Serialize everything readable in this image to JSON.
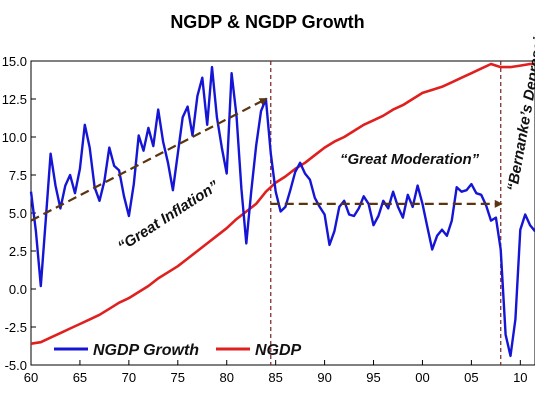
{
  "chart_data": {
    "type": "line",
    "title": "NGDP & NGDP Growth",
    "xlabel": "",
    "ylabel": "",
    "x_ticks": [
      "60",
      "65",
      "70",
      "75",
      "80",
      "85",
      "90",
      "95",
      "00",
      "05",
      "10"
    ],
    "y_ticks": [
      "15.0",
      "12.5",
      "10.0",
      "7.5",
      "5.0",
      "2.5",
      "0.0",
      "-2.5",
      "-5.0"
    ],
    "x_range": [
      1960,
      2011.5
    ],
    "ylim": [
      -5,
      15
    ],
    "grid": false,
    "legend_position": "bottom-left",
    "series": [
      {
        "name": "NGDP Growth",
        "color": "#1515d6",
        "x": [
          1960,
          1960.5,
          1961,
          1961.5,
          1962,
          1962.5,
          1963,
          1963.5,
          1964,
          1964.5,
          1965,
          1965.5,
          1966,
          1966.5,
          1967,
          1967.5,
          1968,
          1968.5,
          1969,
          1969.5,
          1970,
          1970.5,
          1971,
          1971.5,
          1972,
          1972.5,
          1973,
          1973.5,
          1974,
          1974.5,
          1975,
          1975.5,
          1976,
          1976.5,
          1977,
          1977.5,
          1978,
          1978.5,
          1979,
          1979.5,
          1980,
          1980.5,
          1981,
          1981.5,
          1982,
          1982.5,
          1983,
          1983.5,
          1984,
          1984.5,
          1985,
          1985.5,
          1986,
          1986.5,
          1987,
          1987.5,
          1988,
          1988.5,
          1989,
          1989.5,
          1990,
          1990.5,
          1991,
          1991.5,
          1992,
          1992.5,
          1993,
          1993.5,
          1994,
          1994.5,
          1995,
          1995.5,
          1996,
          1996.5,
          1997,
          1997.5,
          1998,
          1998.5,
          1999,
          1999.5,
          2000,
          2000.5,
          2001,
          2001.5,
          2002,
          2002.5,
          2003,
          2003.5,
          2004,
          2004.5,
          2005,
          2005.5,
          2006,
          2006.5,
          2007,
          2007.5,
          2008,
          2008.5,
          2009,
          2009.5,
          2010,
          2010.5,
          2011,
          2011.5
        ],
        "values": [
          6.4,
          3.8,
          0.2,
          4.5,
          8.9,
          6.8,
          5.3,
          6.8,
          7.5,
          6.3,
          7.9,
          10.8,
          9.3,
          6.7,
          5.8,
          7.1,
          9.3,
          8.1,
          7.8,
          6.1,
          4.8,
          6.9,
          10.1,
          9.1,
          10.6,
          9.4,
          11.8,
          9.7,
          8.3,
          6.5,
          8.9,
          11.3,
          12.0,
          10.1,
          12.7,
          13.9,
          10.8,
          14.6,
          11.3,
          9.3,
          7.6,
          14.2,
          11.4,
          6.6,
          3.0,
          6.4,
          9.4,
          11.7,
          12.5,
          8.9,
          6.4,
          5.1,
          5.4,
          6.5,
          7.7,
          8.3,
          7.6,
          7.2,
          6.0,
          5.4,
          4.9,
          2.9,
          3.8,
          5.4,
          5.8,
          4.9,
          4.8,
          5.3,
          6.1,
          5.6,
          4.2,
          4.8,
          5.8,
          5.3,
          6.4,
          5.4,
          4.7,
          6.2,
          5.4,
          6.8,
          5.6,
          4.1,
          2.6,
          3.5,
          3.9,
          3.5,
          4.5,
          6.7,
          6.4,
          6.5,
          6.9,
          6.3,
          6.2,
          5.5,
          4.5,
          4.7,
          2.6,
          -3.0,
          -4.4,
          -2.0,
          3.9,
          4.9,
          4.2,
          3.8
        ]
      },
      {
        "name": "NGDP",
        "color": "#e01f1f",
        "x": [
          1960,
          1961,
          1962,
          1963,
          1964,
          1965,
          1966,
          1967,
          1968,
          1969,
          1970,
          1971,
          1972,
          1973,
          1974,
          1975,
          1976,
          1977,
          1978,
          1979,
          1980,
          1981,
          1982,
          1983,
          1984,
          1985,
          1986,
          1987,
          1988,
          1989,
          1990,
          1991,
          1992,
          1993,
          1994,
          1995,
          1996,
          1997,
          1998,
          1999,
          2000,
          2001,
          2002,
          2003,
          2004,
          2005,
          2006,
          2007,
          2008,
          2009,
          2010,
          2011,
          2011.5
        ],
        "values": [
          -3.6,
          -3.5,
          -3.2,
          -2.9,
          -2.6,
          -2.3,
          -2.0,
          -1.7,
          -1.3,
          -0.9,
          -0.6,
          -0.2,
          0.2,
          0.7,
          1.1,
          1.5,
          2.0,
          2.5,
          3.0,
          3.5,
          4.0,
          4.6,
          5.1,
          5.6,
          6.4,
          7.0,
          7.4,
          7.9,
          8.3,
          8.8,
          9.3,
          9.7,
          10.0,
          10.4,
          10.8,
          11.1,
          11.4,
          11.8,
          12.1,
          12.5,
          12.9,
          13.1,
          13.3,
          13.6,
          13.9,
          14.2,
          14.5,
          14.8,
          14.6,
          14.6,
          14.7,
          14.8,
          14.8
        ]
      }
    ],
    "annotations": [
      {
        "id": "great-inflation",
        "text": "“Great Inflation”"
      },
      {
        "id": "great-moderation",
        "text": "“Great Moderation”"
      },
      {
        "id": "bernanke",
        "text": "“Bernanke’s Depression”"
      }
    ],
    "reference_lines": [
      {
        "id": "vline-1984",
        "x": 1984.5
      },
      {
        "id": "vline-2008",
        "x": 2008
      }
    ],
    "trend_arrows": [
      {
        "id": "inflation-arrow",
        "from": [
          1960,
          4.5
        ],
        "to": [
          1984,
          12.5
        ]
      },
      {
        "id": "moderation-arrow",
        "from": [
          1984.5,
          5.6
        ],
        "to": [
          2008,
          5.6
        ]
      }
    ]
  }
}
